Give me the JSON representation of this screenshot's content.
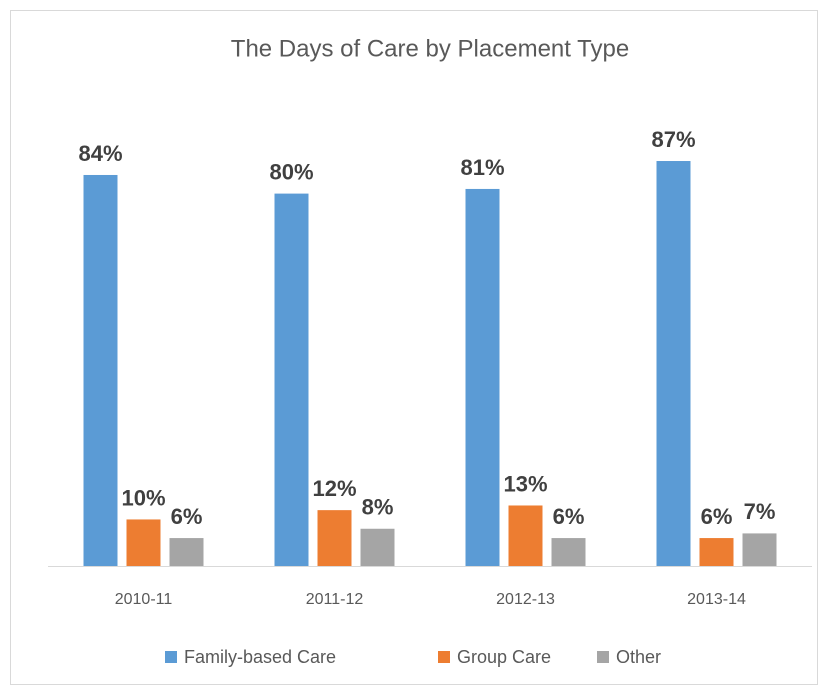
{
  "chart_data": {
    "type": "bar",
    "title": "The Days of Care by Placement Type",
    "categories": [
      "2010-11",
      "2011-12",
      "2012-13",
      "2013-14"
    ],
    "series": [
      {
        "name": "Family-based Care",
        "color": "#5b9bd5",
        "values": [
          84,
          80,
          81,
          87
        ],
        "value_labels": [
          "84%",
          "80%",
          "81%",
          "87%"
        ]
      },
      {
        "name": "Group Care",
        "color": "#ed7d31",
        "values": [
          10,
          12,
          13,
          6
        ],
        "value_labels": [
          "10%",
          "12%",
          "13%",
          "6%"
        ]
      },
      {
        "name": "Other",
        "color": "#a5a5a5",
        "values": [
          6,
          8,
          6,
          7
        ],
        "value_labels": [
          "6%",
          "8%",
          "6%",
          "7%"
        ]
      }
    ]
  }
}
